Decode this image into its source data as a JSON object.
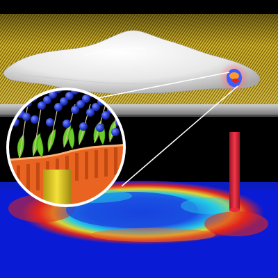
{
  "figure": {
    "subject": "gold-stripe-substrate-with-membrane-and-heatmap"
  },
  "palette": {
    "background": "#000000",
    "gold_plate": "#c8a81c",
    "gold_stripe_dark": "#6e5a0c",
    "gold_stripe_light": "#e2c84a",
    "membrane": "#e8e8e8",
    "laser_beam": "#e8283c",
    "molecule_blue": "#2a3fd4",
    "leaf_green": "#6ccc2a",
    "base_orange": "#e86420",
    "post_yellow": "#e8d01c",
    "heatmap_low": "#0a1bd6",
    "heatmap_mid": "#24d0e8",
    "heatmap_high": "#e82418",
    "magnifier_ring": "#ffffff"
  }
}
